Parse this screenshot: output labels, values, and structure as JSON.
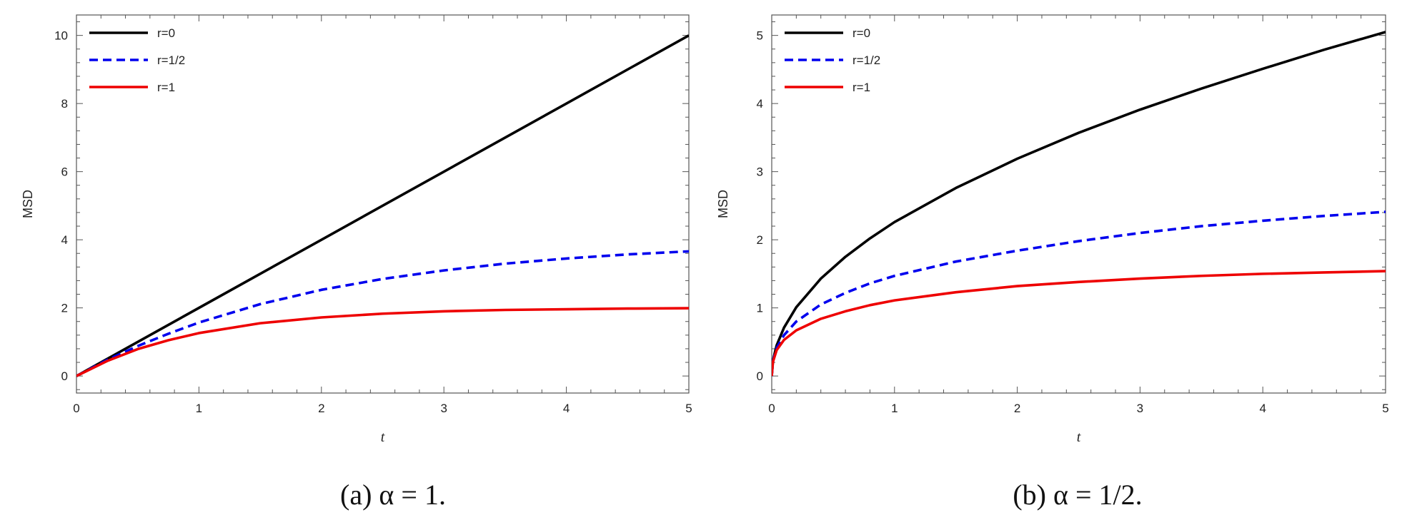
{
  "chart_data": [
    {
      "type": "line",
      "caption": "(a) α = 1.",
      "xlabel": "t",
      "ylabel": "MSD",
      "xlim": [
        0,
        5
      ],
      "ylim": [
        -0.5,
        10.6
      ],
      "xticks": [
        0,
        1,
        2,
        3,
        4,
        5
      ],
      "yticks": [
        0,
        2,
        4,
        6,
        8,
        10
      ],
      "grid": false,
      "legend": "top-left",
      "series": [
        {
          "name": "r=0",
          "color": "#000000",
          "dash": "solid",
          "x": [
            0,
            1,
            2,
            3,
            4,
            5
          ],
          "y": [
            0,
            2,
            4,
            6,
            8,
            10
          ]
        },
        {
          "name": "r=1/2",
          "color": "#0000ee",
          "dash": "dashed",
          "x": [
            0,
            0.25,
            0.5,
            0.75,
            1,
            1.5,
            2,
            2.5,
            3,
            3.5,
            4,
            4.5,
            5
          ],
          "y": [
            0,
            0.47,
            0.88,
            1.24,
            1.57,
            2.11,
            2.53,
            2.85,
            3.1,
            3.3,
            3.45,
            3.57,
            3.66
          ]
        },
        {
          "name": "r=1",
          "color": "#ee0000",
          "dash": "solid",
          "x": [
            0,
            0.25,
            0.5,
            0.75,
            1,
            1.5,
            2,
            2.5,
            3,
            3.5,
            4,
            4.5,
            5
          ],
          "y": [
            0,
            0.44,
            0.79,
            1.05,
            1.26,
            1.55,
            1.72,
            1.83,
            1.9,
            1.94,
            1.96,
            1.98,
            1.99
          ]
        }
      ]
    },
    {
      "type": "line",
      "caption": "(b) α = 1/2.",
      "xlabel": "t",
      "ylabel": "MSD",
      "xlim": [
        0,
        5
      ],
      "ylim": [
        -0.25,
        5.3
      ],
      "xticks": [
        0,
        1,
        2,
        3,
        4,
        5
      ],
      "yticks": [
        0,
        1,
        2,
        3,
        4,
        5
      ],
      "grid": false,
      "legend": "top-left",
      "series": [
        {
          "name": "r=0",
          "color": "#000000",
          "dash": "solid",
          "x": [
            0,
            0.01,
            0.04,
            0.1,
            0.2,
            0.4,
            0.6,
            0.8,
            1,
            1.5,
            2,
            2.5,
            3,
            3.5,
            4,
            4.5,
            5
          ],
          "y": [
            0,
            0.23,
            0.45,
            0.71,
            1.01,
            1.43,
            1.75,
            2.02,
            2.26,
            2.76,
            3.19,
            3.57,
            3.91,
            4.22,
            4.51,
            4.79,
            5.05
          ]
        },
        {
          "name": "r=1/2",
          "color": "#0000ee",
          "dash": "dashed",
          "x": [
            0,
            0.01,
            0.04,
            0.1,
            0.2,
            0.4,
            0.6,
            0.8,
            1,
            1.5,
            2,
            2.5,
            3,
            3.5,
            4,
            4.5,
            5
          ],
          "y": [
            0,
            0.22,
            0.41,
            0.6,
            0.8,
            1.05,
            1.22,
            1.36,
            1.47,
            1.68,
            1.84,
            1.98,
            2.1,
            2.2,
            2.28,
            2.35,
            2.41
          ]
        },
        {
          "name": "r=1",
          "color": "#ee0000",
          "dash": "solid",
          "x": [
            0,
            0.01,
            0.04,
            0.1,
            0.2,
            0.4,
            0.6,
            0.8,
            1,
            1.5,
            2,
            2.5,
            3,
            3.5,
            4,
            4.5,
            5
          ],
          "y": [
            0,
            0.21,
            0.38,
            0.53,
            0.67,
            0.84,
            0.95,
            1.04,
            1.11,
            1.23,
            1.32,
            1.38,
            1.43,
            1.47,
            1.5,
            1.52,
            1.54
          ]
        }
      ]
    }
  ]
}
